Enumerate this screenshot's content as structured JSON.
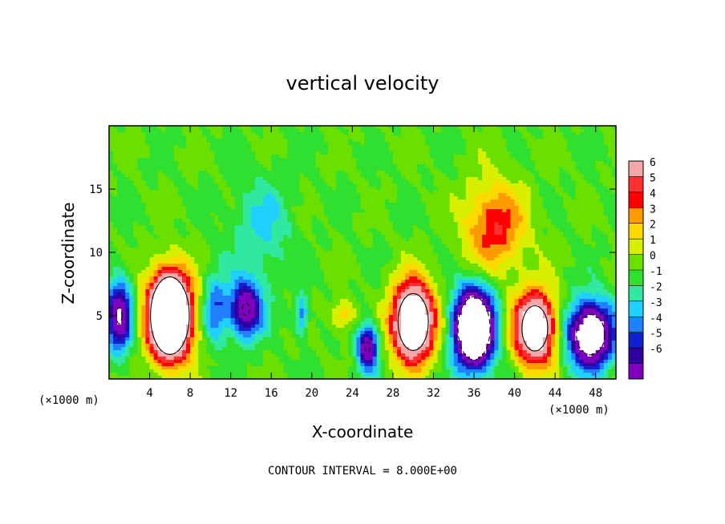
{
  "chart_data": {
    "type": "heatmap",
    "title": "vertical velocity",
    "xlabel": "X-coordinate",
    "ylabel": "Z-coordinate",
    "x_unit_label": "(×1000 m)",
    "x_unit_label_right": "(×1000 m)",
    "xlim": [
      0,
      50
    ],
    "ylim": [
      0,
      20
    ],
    "x_ticks": [
      4,
      8,
      12,
      16,
      20,
      24,
      28,
      32,
      36,
      40,
      44,
      48
    ],
    "y_ticks": [
      5,
      10,
      15
    ],
    "contour_interval_label": "CONTOUR INTERVAL = 8.000E+00",
    "colorbar": {
      "levels": [
        6,
        5,
        4,
        3,
        2,
        1,
        0,
        -1,
        -2,
        -3,
        -4,
        -5,
        -6
      ],
      "colors": [
        "#f5a6a6",
        "#ff3030",
        "#ff0000",
        "#ff9a00",
        "#ffd800",
        "#d8f000",
        "#6ae000",
        "#30e030",
        "#30e8a0",
        "#20d0ff",
        "#2080ff",
        "#1020d0",
        "#3000a0",
        "#8000c0"
      ]
    },
    "features": [
      {
        "label": "updraft",
        "x": 6,
        "z": 5,
        "peak": 20,
        "sx": 2.0,
        "sz": 3.2
      },
      {
        "label": "downdraft",
        "x": 1,
        "z": 5,
        "peak": -8,
        "sx": 1.2,
        "sz": 2.8
      },
      {
        "label": "downdraft",
        "x": 10.5,
        "z": 5.5,
        "peak": -4,
        "sx": 1.2,
        "sz": 2.6
      },
      {
        "label": "downdraft",
        "x": 13.5,
        "z": 5.5,
        "peak": -8,
        "sx": 1.6,
        "sz": 2.2
      },
      {
        "label": "downdraft",
        "x": 19,
        "z": 5,
        "peak": -4,
        "sx": 0.6,
        "sz": 1.5
      },
      {
        "label": "updraft",
        "x": 23,
        "z": 5,
        "peak": 3,
        "sx": 1.2,
        "sz": 1.2
      },
      {
        "label": "downdraft",
        "x": 25.5,
        "z": 2.5,
        "peak": -8,
        "sx": 1.0,
        "sz": 1.8
      },
      {
        "label": "updraft",
        "x": 30,
        "z": 4.5,
        "peak": 14,
        "sx": 2.0,
        "sz": 3.0
      },
      {
        "label": "downdraft",
        "x": 36,
        "z": 4,
        "peak": -16,
        "sx": 1.9,
        "sz": 3.0
      },
      {
        "label": "updraft",
        "x": 42,
        "z": 4,
        "peak": 12,
        "sx": 2.0,
        "sz": 2.8
      },
      {
        "label": "downdraft",
        "x": 47.5,
        "z": 3.5,
        "peak": -12,
        "sx": 2.2,
        "sz": 2.5
      },
      {
        "label": "updraft",
        "x": 38,
        "z": 12,
        "peak": 5,
        "sx": 3.0,
        "sz": 3.5
      },
      {
        "label": "downdraft",
        "x": 15,
        "z": 12,
        "peak": -2.2,
        "sx": 3.0,
        "sz": 4.0
      }
    ]
  }
}
